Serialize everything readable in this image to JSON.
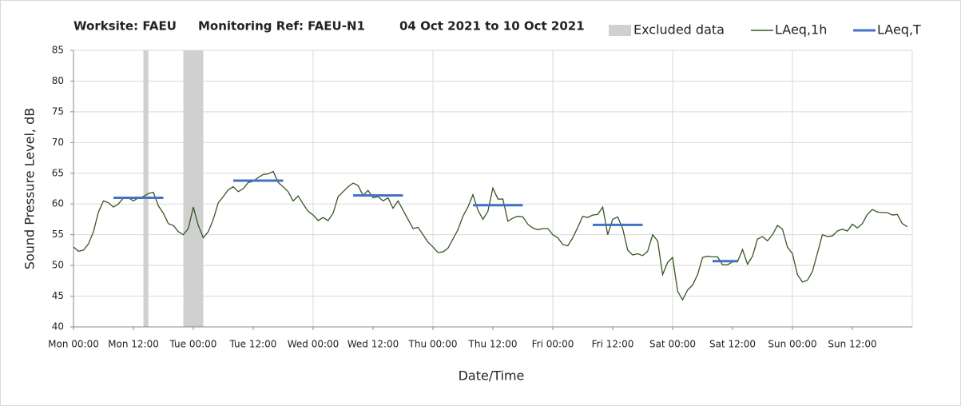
{
  "chart_data": {
    "type": "line",
    "titles": [
      "Worksite: FAEU",
      "Monitoring Ref: FAEU-N1",
      "04 Oct 2021 to 10 Oct 2021"
    ],
    "y_label": "Sound Pressure Level, dB",
    "x_label": "Date/Time",
    "xlim": [
      0,
      168
    ],
    "xticks": [
      {
        "value": 0,
        "label": "Mon 00:00"
      },
      {
        "value": 12,
        "label": "Mon 12:00"
      },
      {
        "value": 24,
        "label": "Tue 00:00"
      },
      {
        "value": 36,
        "label": "Tue 12:00"
      },
      {
        "value": 48,
        "label": "Wed 00:00"
      },
      {
        "value": 60,
        "label": "Wed 12:00"
      },
      {
        "value": 72,
        "label": "Thu 00:00"
      },
      {
        "value": 84,
        "label": "Thu 12:00"
      },
      {
        "value": 96,
        "label": "Fri 00:00"
      },
      {
        "value": 108,
        "label": "Fri 12:00"
      },
      {
        "value": 120,
        "label": "Sat 00:00"
      },
      {
        "value": 132,
        "label": "Sat 12:00"
      },
      {
        "value": 144,
        "label": "Sun 00:00"
      },
      {
        "value": 156,
        "label": "Sun 12:00"
      }
    ],
    "ylim": [
      40,
      85
    ],
    "yticks": [
      40,
      45,
      50,
      55,
      60,
      65,
      70,
      75,
      80,
      85
    ],
    "grid": true,
    "excluded": {
      "name": "Excluded data",
      "color": "#d0d0d0",
      "ranges": [
        [
          14,
          15
        ],
        [
          22,
          26
        ]
      ]
    },
    "x": [
      0,
      1,
      2,
      3,
      4,
      5,
      6,
      7,
      8,
      9,
      10,
      11,
      12,
      13,
      14,
      15,
      16,
      17,
      18,
      19,
      20,
      21,
      22,
      23,
      24,
      25,
      26,
      27,
      28,
      29,
      30,
      31,
      32,
      33,
      34,
      35,
      36,
      37,
      38,
      39,
      40,
      41,
      42,
      43,
      44,
      45,
      46,
      47,
      48,
      49,
      50,
      51,
      52,
      53,
      54,
      55,
      56,
      57,
      58,
      59,
      60,
      61,
      62,
      63,
      64,
      65,
      66,
      67,
      68,
      69,
      70,
      71,
      72,
      73,
      74,
      75,
      76,
      77,
      78,
      79,
      80,
      81,
      82,
      83,
      84,
      85,
      86,
      87,
      88,
      89,
      90,
      91,
      92,
      93,
      94,
      95,
      96,
      97,
      98,
      99,
      100,
      101,
      102,
      103,
      104,
      105,
      106,
      107,
      108,
      109,
      110,
      111,
      112,
      113,
      114,
      115,
      116,
      117,
      118,
      119,
      120,
      121,
      122,
      123,
      124,
      125,
      126,
      127,
      128,
      129,
      130,
      131,
      132,
      133,
      134,
      135,
      136,
      137,
      138,
      139,
      140,
      141,
      142,
      143,
      144,
      145,
      146,
      147,
      148,
      149,
      150,
      151,
      152,
      153,
      154,
      155,
      156,
      157,
      158,
      159,
      160,
      161,
      162,
      163,
      164,
      165,
      166,
      167
    ],
    "series": [
      {
        "name": "LAeq,1h",
        "color": "#375623",
        "values": [
          53,
          52.3,
          52.5,
          53.5,
          55.5,
          58.7,
          60.5,
          60.2,
          59.5,
          60,
          61,
          61,
          60.5,
          61,
          61.2,
          61.7,
          61.9,
          59.7,
          58.5,
          56.8,
          56.5,
          55.5,
          55,
          56,
          59.5,
          56.5,
          54.5,
          55.5,
          57.5,
          60.2,
          61.2,
          62.3,
          62.8,
          62,
          62.5,
          63.5,
          63.7,
          64.3,
          64.8,
          64.9,
          65.3,
          63.5,
          62.8,
          62,
          60.5,
          61.3,
          60,
          58.8,
          58.2,
          57.3,
          57.8,
          57.3,
          58.5,
          61.2,
          62,
          62.8,
          63.4,
          63,
          61.4,
          62.2,
          61,
          61.2,
          60.5,
          61,
          59.3,
          60.5,
          59,
          57.5,
          56,
          56.2,
          55,
          53.8,
          53,
          52.1,
          52.2,
          52.8,
          54.3,
          55.8,
          58,
          59.5,
          61.5,
          59,
          57.5,
          58.8,
          62.6,
          60.8,
          60.8,
          57.2,
          57.7,
          58,
          57.9,
          56.7,
          56.1,
          55.8,
          56,
          56,
          55,
          54.5,
          53.4,
          53.2,
          54.5,
          56.2,
          58,
          57.8,
          58.2,
          58.3,
          59.5,
          55,
          57.5,
          57.9,
          56,
          52.5,
          51.7,
          51.9,
          51.6,
          52.3,
          55,
          54,
          48.5,
          50.5,
          51.3,
          45.8,
          44.4,
          46,
          46.8,
          48.5,
          51.3,
          51.5,
          51.4,
          51.4,
          50.1,
          50.1,
          50.6,
          50.6,
          52.6,
          50.2,
          51.5,
          54.3,
          54.7,
          54,
          55,
          56.5,
          55.9,
          53,
          51.9,
          48.5,
          47.3,
          47.6,
          49,
          52,
          55,
          54.7,
          54.8,
          55.6,
          55.9,
          55.6,
          56.7,
          56.1,
          56.8,
          58.3,
          59.1,
          58.7,
          58.6,
          58.6,
          58.2,
          58.3,
          56.8,
          56.3
        ]
      }
    ],
    "periods": {
      "name": "LAeq,T",
      "color": "#4472c4",
      "segments": [
        {
          "x": [
            8,
            18
          ],
          "value": 61
        },
        {
          "x": [
            32,
            42
          ],
          "value": 63.8
        },
        {
          "x": [
            56,
            66
          ],
          "value": 61.4
        },
        {
          "x": [
            80,
            90
          ],
          "value": 59.8
        },
        {
          "x": [
            104,
            114
          ],
          "value": 56.6
        },
        {
          "x": [
            128,
            133
          ],
          "value": 50.7
        }
      ]
    }
  }
}
